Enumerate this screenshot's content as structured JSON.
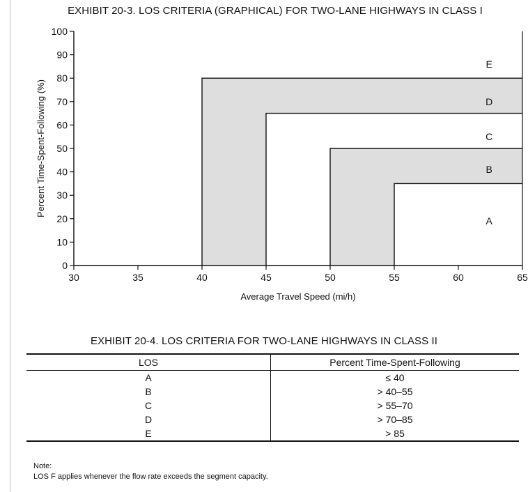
{
  "chart_data": {
    "type": "area",
    "title": "EXHIBIT 20-3.  LOS CRITERIA (GRAPHICAL) FOR TWO-LANE HIGHWAYS IN CLASS I",
    "xlabel": "Average Travel Speed (mi/h)",
    "ylabel": "Percent Time-Spent-Following (%)",
    "xlim": [
      30,
      65
    ],
    "ylim": [
      0,
      100
    ],
    "xticks": [
      30,
      35,
      40,
      45,
      50,
      55,
      60,
      65
    ],
    "yticks": [
      0,
      10,
      20,
      30,
      40,
      50,
      60,
      70,
      80,
      90,
      100
    ],
    "grid": false,
    "regions": [
      {
        "label": "E",
        "shaded": false,
        "corner_speed": 30,
        "corner_percent": 100
      },
      {
        "label": "D",
        "shaded": true,
        "corner_speed": 40,
        "corner_percent": 80
      },
      {
        "label": "C",
        "shaded": false,
        "corner_speed": 45,
        "corner_percent": 65
      },
      {
        "label": "B",
        "shaded": true,
        "corner_speed": 50,
        "corner_percent": 50
      },
      {
        "label": "A",
        "shaded": false,
        "corner_speed": 55,
        "corner_percent": 35
      }
    ],
    "region_labels": [
      {
        "label": "E",
        "speed": 62.4,
        "percent": 86
      },
      {
        "label": "D",
        "speed": 62.4,
        "percent": 70
      },
      {
        "label": "C",
        "speed": 62.4,
        "percent": 55
      },
      {
        "label": "B",
        "speed": 62.4,
        "percent": 41
      },
      {
        "label": "A",
        "speed": 62.4,
        "percent": 19
      }
    ]
  },
  "table": {
    "title": "EXHIBIT 20-4.  LOS CRITERIA FOR TWO-LANE HIGHWAYS IN CLASS II",
    "columns": [
      "LOS",
      "Percent Time-Spent-Following"
    ],
    "rows": [
      [
        "A",
        "≤ 40"
      ],
      [
        "B",
        "> 40–55"
      ],
      [
        "C",
        "> 55–70"
      ],
      [
        "D",
        "> 70–85"
      ],
      [
        "E",
        "> 85"
      ]
    ]
  },
  "note": {
    "heading": "Note:",
    "text": "LOS F applies whenever the flow rate exceeds the segment capacity."
  },
  "colors": {
    "shade": "#dedede",
    "line": "#111111"
  }
}
